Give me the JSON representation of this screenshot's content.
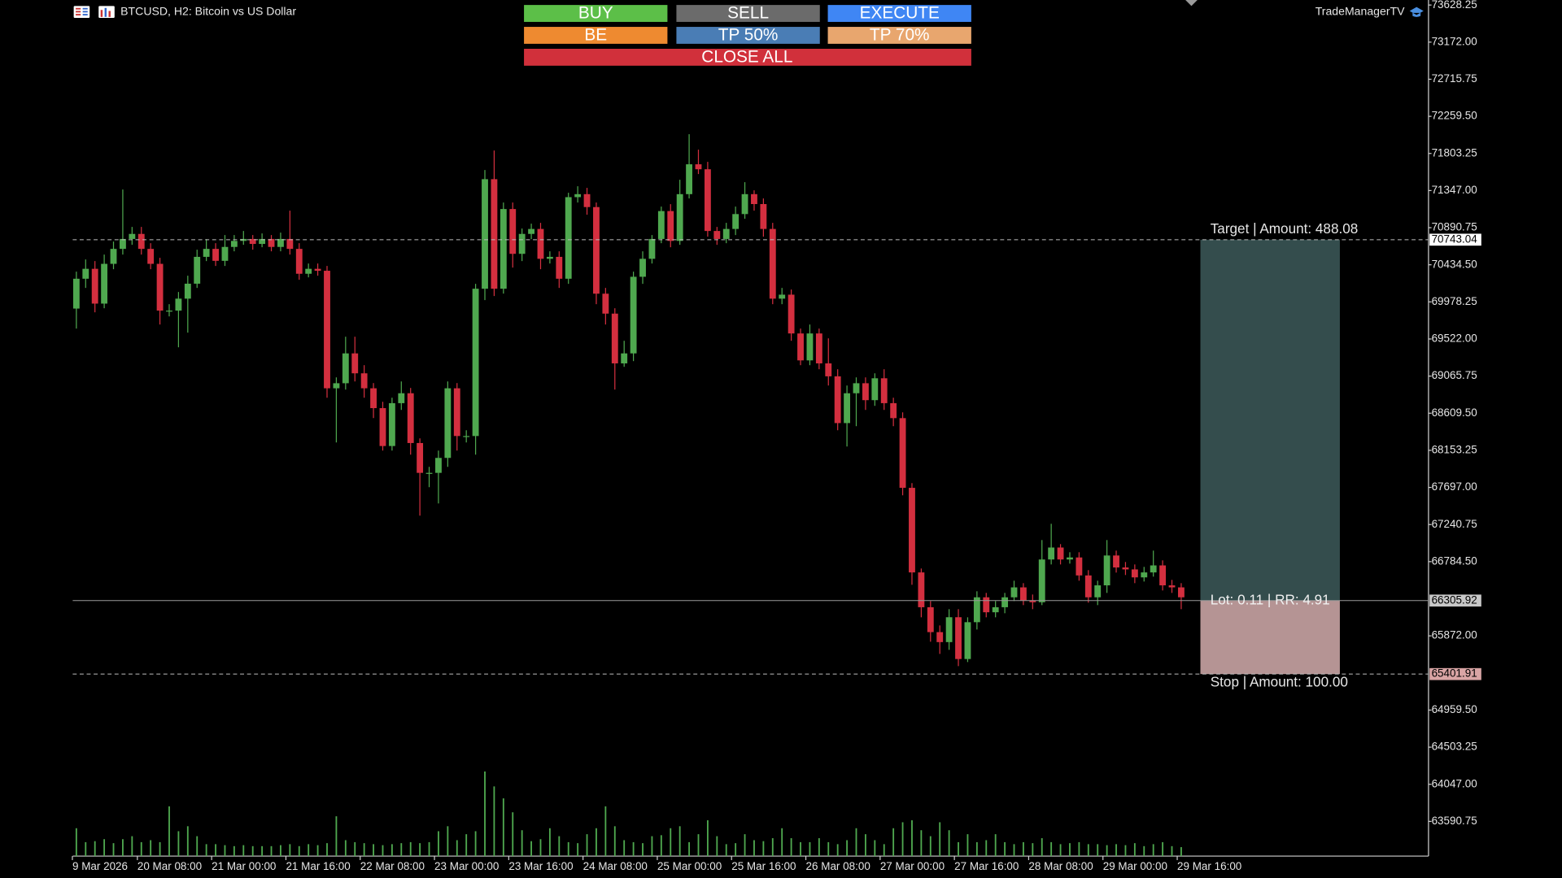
{
  "header": {
    "symbol": "BTCUSD, H2:  Bitcoin vs US Dollar",
    "brand": "TradeManagerTV"
  },
  "buttons": [
    "BUY",
    "SELL",
    "EXECUTE",
    "BE",
    "TP 50%",
    "TP 70%",
    "CLOSE ALL"
  ],
  "chart_data": {
    "type": "candlestick",
    "up_color": "#4fa84f",
    "down_color": "#d32f3f",
    "volume_color": "#4fa84f",
    "ylim": [
      63164,
      73690
    ],
    "yticks": [
      73628.25,
      {
        "value": 73172,
        "label": "73172.00"
      },
      72715.75,
      {
        "value": 72259.5,
        "label": "72259.50"
      },
      71803.25,
      {
        "value": 71347,
        "label": "71347.00"
      },
      70890.75,
      {
        "value": 70434.5,
        "label": "70434.50"
      },
      69978.25,
      {
        "value": 69522,
        "label": "69522.00"
      },
      69065.75,
      {
        "value": 68609.5,
        "label": "68609.50"
      },
      68153.25,
      {
        "value": 67697,
        "label": "67697.00"
      },
      67240.75,
      {
        "value": 66784.5,
        "label": "66784.50"
      },
      {
        "value": 65872,
        "label": "65872.00"
      },
      {
        "value": 64959.5,
        "label": "64959.50"
      },
      {
        "value": 64503.25,
        "label": "64503.25"
      },
      {
        "value": 64047,
        "label": "64047.00"
      },
      63590.75
    ],
    "categories": [
      "9 Mar 2026",
      null,
      null,
      null,
      null,
      null,
      null,
      "20 Mar 08:00",
      null,
      null,
      null,
      null,
      null,
      null,
      null,
      "21 Mar 00:00",
      null,
      null,
      null,
      null,
      null,
      null,
      null,
      "21 Mar 16:00",
      null,
      null,
      null,
      null,
      null,
      null,
      null,
      "22 Mar 08:00",
      null,
      null,
      null,
      null,
      null,
      null,
      null,
      "23 Mar 00:00",
      null,
      null,
      null,
      null,
      null,
      null,
      null,
      "23 Mar 16:00",
      null,
      null,
      null,
      null,
      null,
      null,
      null,
      "24 Mar 08:00",
      null,
      null,
      null,
      null,
      null,
      null,
      null,
      "25 Mar 00:00",
      null,
      null,
      null,
      null,
      null,
      null,
      null,
      "25 Mar 16:00",
      null,
      null,
      null,
      null,
      null,
      null,
      null,
      "26 Mar 08:00",
      null,
      null,
      null,
      null,
      null,
      null,
      null,
      "27 Mar 00:00",
      null,
      null,
      null,
      null,
      null,
      null,
      null,
      "27 Mar 16:00",
      null,
      null,
      null,
      null,
      null,
      null,
      null,
      "28 Mar 08:00",
      null,
      null,
      null,
      null,
      null,
      null,
      null,
      "29 Mar 00:00",
      null,
      null,
      null,
      null,
      null,
      null,
      null,
      "29 Mar 16:00"
    ],
    "candles": [
      [
        69896,
        70350,
        69650,
        70263
      ],
      [
        70263,
        70500,
        70150,
        70385
      ],
      [
        70385,
        70480,
        69850,
        69957
      ],
      [
        69957,
        70560,
        69900,
        70446
      ],
      [
        70446,
        70720,
        70380,
        70630
      ],
      [
        70630,
        71360,
        70560,
        70752
      ],
      [
        70752,
        70900,
        70680,
        70814
      ],
      [
        70814,
        70900,
        70560,
        70630
      ],
      [
        70630,
        70700,
        70380,
        70446
      ],
      [
        70446,
        70520,
        69700,
        69871
      ],
      [
        69871,
        69950,
        69800,
        69871
      ],
      [
        69871,
        70100,
        69420,
        70018
      ],
      [
        70018,
        70300,
        69600,
        70202
      ],
      [
        70202,
        70620,
        70150,
        70532
      ],
      [
        70532,
        70750,
        70480,
        70630
      ],
      [
        70630,
        70700,
        70420,
        70483
      ],
      [
        70483,
        70800,
        70420,
        70654
      ],
      [
        70654,
        70800,
        70600,
        70728
      ],
      [
        70728,
        70850,
        70680,
        70752
      ],
      [
        70752,
        70800,
        70620,
        70691
      ],
      [
        70691,
        70820,
        70650,
        70752
      ],
      [
        70752,
        70800,
        70600,
        70654
      ],
      [
        70654,
        70830,
        70600,
        70752
      ],
      [
        70752,
        71100,
        70560,
        70630
      ],
      [
        70630,
        70700,
        70250,
        70324
      ],
      [
        70324,
        70450,
        70280,
        70385
      ],
      [
        70385,
        70450,
        70300,
        70361
      ],
      [
        70361,
        70420,
        68800,
        68916
      ],
      [
        68916,
        69050,
        68250,
        68978
      ],
      [
        68978,
        69550,
        68900,
        69345
      ],
      [
        69345,
        69550,
        69000,
        69100
      ],
      [
        69100,
        69200,
        68800,
        68916
      ],
      [
        68916,
        68980,
        68550,
        68672
      ],
      [
        68672,
        68750,
        68150,
        68206
      ],
      [
        68206,
        68800,
        68150,
        68733
      ],
      [
        68733,
        69000,
        68650,
        68855
      ],
      [
        68855,
        68920,
        68100,
        68243
      ],
      [
        68243,
        68300,
        67350,
        67876
      ],
      [
        67876,
        67950,
        67700,
        67876
      ],
      [
        67876,
        68150,
        67500,
        68060
      ],
      [
        68060,
        69000,
        67950,
        68916
      ],
      [
        68916,
        68980,
        68150,
        68329
      ],
      [
        68329,
        68400,
        68250,
        68329
      ],
      [
        68329,
        70200,
        68100,
        70140
      ],
      [
        70140,
        71600,
        70000,
        71487
      ],
      [
        71487,
        71840,
        70050,
        70140
      ],
      [
        70140,
        71200,
        70080,
        71120
      ],
      [
        71120,
        71200,
        70400,
        70569
      ],
      [
        70569,
        70880,
        70480,
        70814
      ],
      [
        70814,
        70940,
        70750,
        70875
      ],
      [
        70875,
        70950,
        70380,
        70508
      ],
      [
        70508,
        70600,
        70450,
        70532
      ],
      [
        70532,
        70600,
        70150,
        70263
      ],
      [
        70263,
        71320,
        70200,
        71266
      ],
      [
        71266,
        71400,
        71200,
        71303
      ],
      [
        71303,
        71380,
        71050,
        71144
      ],
      [
        71144,
        71200,
        69950,
        70079
      ],
      [
        70079,
        70150,
        69700,
        69834
      ],
      [
        69834,
        69900,
        68900,
        69222
      ],
      [
        69222,
        69500,
        69180,
        69345
      ],
      [
        69345,
        70350,
        69250,
        70287
      ],
      [
        70287,
        70600,
        70200,
        70508
      ],
      [
        70508,
        70800,
        70450,
        70752
      ],
      [
        70752,
        71150,
        70700,
        71095
      ],
      [
        71095,
        71180,
        70650,
        70728
      ],
      [
        70728,
        71480,
        70680,
        71303
      ],
      [
        71303,
        72040,
        71250,
        71670
      ],
      [
        71670,
        71850,
        71550,
        71609
      ],
      [
        71609,
        71700,
        70780,
        70850
      ],
      [
        70850,
        70900,
        70680,
        70752
      ],
      [
        70752,
        70950,
        70700,
        70875
      ],
      [
        70875,
        71150,
        70800,
        71058
      ],
      [
        71058,
        71450,
        71000,
        71303
      ],
      [
        71303,
        71350,
        71100,
        71181
      ],
      [
        71181,
        71250,
        70780,
        70875
      ],
      [
        70875,
        70950,
        69950,
        70018
      ],
      [
        70018,
        70150,
        69950,
        70067
      ],
      [
        70067,
        70130,
        69500,
        69590
      ],
      [
        69590,
        69650,
        69200,
        69259
      ],
      [
        69259,
        69700,
        69200,
        69590
      ],
      [
        69590,
        69650,
        69150,
        69222
      ],
      [
        69222,
        69530,
        68950,
        69063
      ],
      [
        69063,
        69150,
        68400,
        68488
      ],
      [
        68488,
        68950,
        68200,
        68855
      ],
      [
        68855,
        69050,
        68450,
        68978
      ],
      [
        68978,
        69050,
        68650,
        68770
      ],
      [
        68770,
        69100,
        68700,
        69039
      ],
      [
        69039,
        69150,
        68650,
        68733
      ],
      [
        68733,
        68800,
        68450,
        68549
      ],
      [
        68549,
        68620,
        67600,
        67692
      ],
      [
        67692,
        67750,
        66500,
        66652
      ],
      [
        66652,
        66700,
        66100,
        66224
      ],
      [
        66224,
        66300,
        65800,
        65918
      ],
      [
        65918,
        66000,
        65650,
        65795
      ],
      [
        65795,
        66200,
        65700,
        66101
      ],
      [
        66101,
        66200,
        65500,
        65587
      ],
      [
        65587,
        66100,
        65550,
        66040
      ],
      [
        66040,
        66420,
        65950,
        66346
      ],
      [
        66346,
        66400,
        66100,
        66162
      ],
      [
        66162,
        66300,
        66100,
        66224
      ],
      [
        66224,
        66400,
        66150,
        66346
      ],
      [
        66346,
        66550,
        66300,
        66468
      ],
      [
        66468,
        66520,
        66250,
        66309
      ],
      [
        66309,
        66380,
        66200,
        66285
      ],
      [
        66285,
        67050,
        66250,
        66811
      ],
      [
        66811,
        67250,
        66750,
        66958
      ],
      [
        66958,
        67000,
        66750,
        66811
      ],
      [
        66811,
        66900,
        66760,
        66836
      ],
      [
        66836,
        66900,
        66550,
        66615
      ],
      [
        66615,
        66680,
        66280,
        66346
      ],
      [
        66346,
        66550,
        66250,
        66493
      ],
      [
        66493,
        67050,
        66400,
        66860
      ],
      [
        66860,
        66920,
        66650,
        66713
      ],
      [
        66713,
        66780,
        66620,
        66689
      ],
      [
        66689,
        66750,
        66520,
        66591
      ],
      [
        66591,
        66720,
        66540,
        66652
      ],
      [
        66652,
        66920,
        66600,
        66738
      ],
      [
        66738,
        66800,
        66430,
        66493
      ],
      [
        66493,
        66560,
        66400,
        66468
      ],
      [
        66468,
        66520,
        66200,
        66346
      ]
    ],
    "volume": [
      2800,
      1400,
      1500,
      1700,
      1300,
      1700,
      2000,
      1400,
      1600,
      1400,
      5000,
      2500,
      3000,
      2000,
      1200,
      1200,
      1100,
      1000,
      1100,
      1000,
      1000,
      1000,
      1100,
      1200,
      1000,
      1200,
      1100,
      1300,
      4000,
      1600,
      1400,
      1300,
      1200,
      1100,
      1200,
      1300,
      1400,
      1300,
      1400,
      2500,
      3000,
      1600,
      2200,
      2500,
      8500,
      7000,
      5800,
      4400,
      2600,
      1500,
      1700,
      2800,
      2000,
      1400,
      1300,
      2200,
      2800,
      5000,
      3000,
      1600,
      1400,
      1300,
      2000,
      2100,
      2800,
      3000,
      1400,
      2200,
      3600,
      2000,
      1200,
      1300,
      2200,
      1600,
      1500,
      1800,
      2800,
      1800,
      1400,
      1400,
      1800,
      1400,
      1200,
      1600,
      2800,
      2200,
      1600,
      1200,
      2800,
      3400,
      3600,
      2600,
      2000,
      3400,
      2600,
      1400,
      2200,
      1400,
      1600,
      2200,
      1400,
      1200,
      1400,
      1300,
      1800,
      1400,
      1200,
      1300,
      1400,
      1200,
      1200,
      1100,
      1200,
      1100,
      1300,
      1000,
      1200,
      1400,
      1000,
      900
    ],
    "position": {
      "target": {
        "price": 70743.04,
        "label": "Target | Amount: 488.08"
      },
      "entry": {
        "price": 66305.92,
        "label": "Lot: 0.11 | RR: 4.91"
      },
      "stop": {
        "price": 65401.91,
        "label": "Stop | Amount: 100.00"
      },
      "target_color": "#344d4d",
      "stop_color": "#b59494"
    }
  }
}
